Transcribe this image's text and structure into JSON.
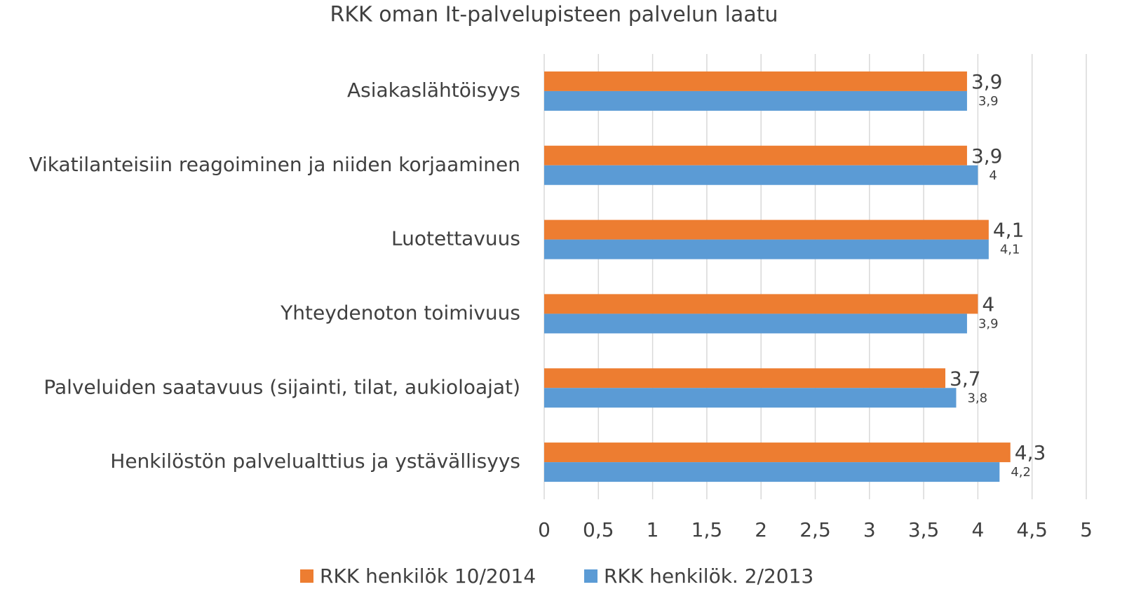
{
  "chart_data": {
    "type": "hbar",
    "title": "RKK oman It-palvelupisteen palvelun laatu",
    "categories": [
      "Asiakaslähtöisyys",
      "Vikatilanteisiin reagoiminen ja niiden korjaaminen",
      "Luotettavuus",
      "Yhteydenoton toimivuus",
      "Palveluiden saatavuus (sijainti, tilat, aukioloajat)",
      "Henkilöstön palvelualttius ja ystävällisyys"
    ],
    "series": [
      {
        "name": "RKK henkilök 10/2014",
        "color": "#ed7d31",
        "values": [
          3.9,
          3.9,
          4.1,
          4,
          3.7,
          4.3
        ],
        "value_labels": [
          "3,9",
          "3,9",
          "4,1",
          "4",
          "3,7",
          "4,3"
        ]
      },
      {
        "name": "RKK henkilök. 2/2013",
        "color": "#5b9bd5",
        "values": [
          3.9,
          4,
          4.1,
          3.9,
          3.8,
          4.2
        ],
        "value_labels": [
          "3,9",
          "4",
          "4,1",
          "3,9",
          "3,8",
          "4,2"
        ]
      }
    ],
    "xlim": [
      0,
      5
    ],
    "xticks": [
      0,
      {
        "value": 0.5,
        "label": "0,5"
      },
      1,
      {
        "value": 1.5,
        "label": "1,5"
      },
      2,
      {
        "value": 2.5,
        "label": "2,5"
      },
      3,
      {
        "value": 3.5,
        "label": "3,5"
      },
      4,
      {
        "value": 4.5,
        "label": "4,5"
      },
      5
    ],
    "grid": true,
    "legend": "bottom"
  }
}
